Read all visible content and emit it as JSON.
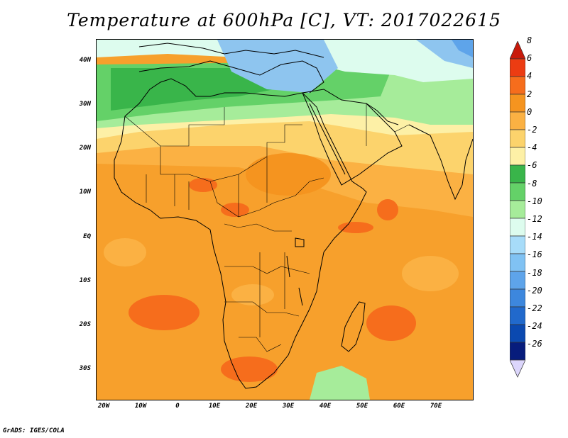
{
  "title": "Temperature at 600hPa [C], VT: 2017022615",
  "credit": "GrADS: IGES/COLA",
  "y_axis_labels": [
    "40N",
    "30N",
    "20N",
    "10N",
    "EQ",
    "10S",
    "20S",
    "30S"
  ],
  "x_axis_labels": [
    "20W",
    "10W",
    "0",
    "10E",
    "20E",
    "30E",
    "40E",
    "50E",
    "60E",
    "70E"
  ],
  "colorbar": {
    "labels": [
      "8",
      "6",
      "4",
      "2",
      "0",
      "-2",
      "-4",
      "-6",
      "-8",
      "-10",
      "-12",
      "-14",
      "-16",
      "-18",
      "-20",
      "-22",
      "-24",
      "-26"
    ],
    "colors": [
      "#c81a0b",
      "#ec3c12",
      "#f66d1c",
      "#f5941f",
      "#fbb143",
      "#fcd36c",
      "#fdf0a6",
      "#39b54a",
      "#64d168",
      "#a6ec9a",
      "#ddfcee",
      "#a7dcf9",
      "#80c2f3",
      "#5ea4ea",
      "#3d87dd",
      "#2169cc",
      "#0b49b0",
      "#071c7c"
    ]
  },
  "map": {
    "region": "Africa and surroundings",
    "lat_range": [
      -37,
      45
    ],
    "lon_range": [
      -22,
      80
    ],
    "colors": {
      "background": "#f7a02c",
      "cold_blue": "#8ec5ef",
      "very_cold": "#5ea4ea",
      "cool_cyan": "#ddfcee",
      "green_dark": "#39b54a",
      "green_mid": "#64d168",
      "green_light": "#a6ec9a",
      "pale_yellow": "#fdf0a6",
      "yellow": "#fcd36c",
      "light_orange": "#fbb143",
      "orange": "#f5941f",
      "deep_orange": "#f66d1c",
      "red_orange": "#ec3c12"
    }
  }
}
